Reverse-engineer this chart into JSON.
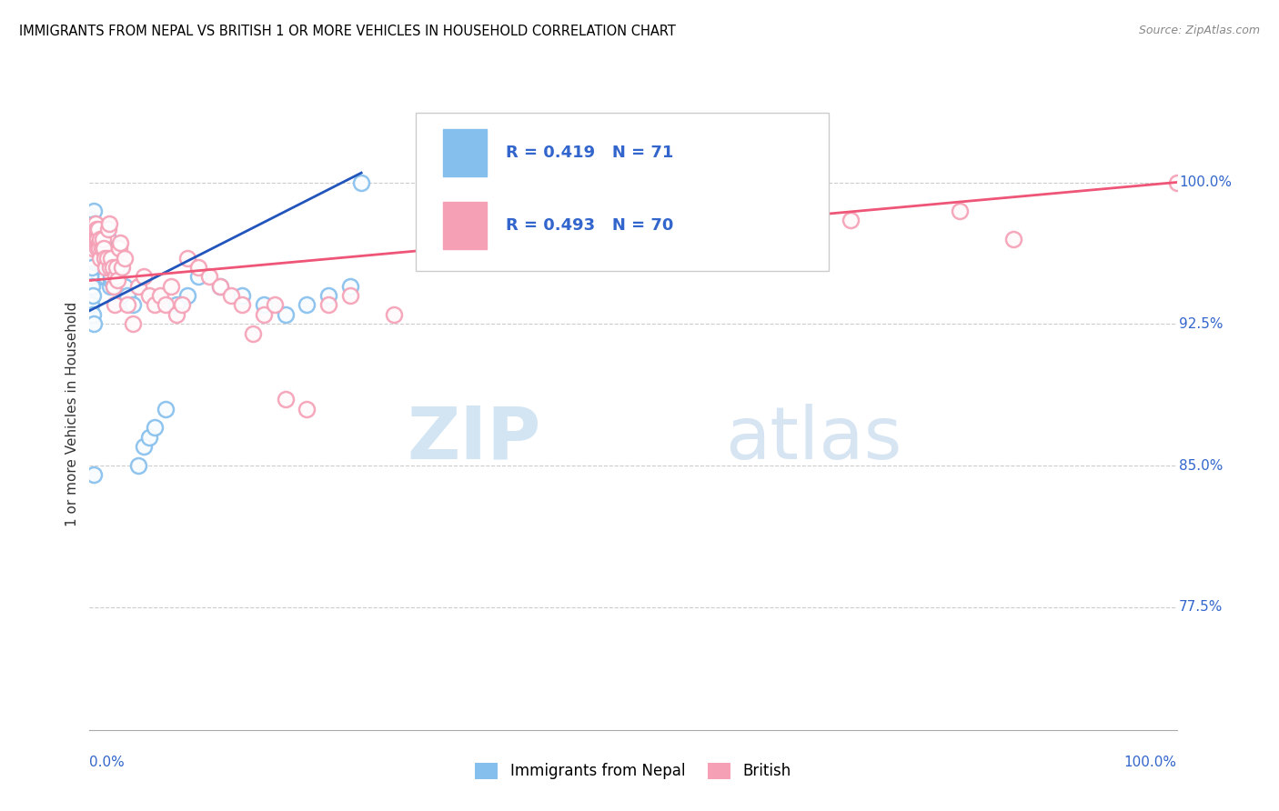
{
  "title": "IMMIGRANTS FROM NEPAL VS BRITISH 1 OR MORE VEHICLES IN HOUSEHOLD CORRELATION CHART",
  "source": "Source: ZipAtlas.com",
  "ylabel": "1 or more Vehicles in Household",
  "yticks": [
    77.5,
    85.0,
    92.5,
    100.0
  ],
  "ytick_labels": [
    "77.5%",
    "85.0%",
    "92.5%",
    "100.0%"
  ],
  "xmin": 0.0,
  "xmax": 100.0,
  "ymin": 71.0,
  "ymax": 104.5,
  "nepal_R": 0.419,
  "nepal_N": 71,
  "british_R": 0.493,
  "british_N": 70,
  "nepal_color": "#85BFED",
  "british_color": "#F5A0B5",
  "nepal_line_color": "#2255BB",
  "british_line_color": "#EE5577",
  "nepal_scatter_x": [
    0.1,
    0.15,
    0.2,
    0.25,
    0.3,
    0.35,
    0.4,
    0.45,
    0.5,
    0.55,
    0.6,
    0.65,
    0.7,
    0.75,
    0.8,
    0.85,
    0.9,
    0.95,
    1.0,
    1.05,
    1.1,
    1.15,
    1.2,
    1.25,
    1.3,
    1.35,
    1.4,
    1.45,
    1.5,
    1.55,
    1.6,
    1.65,
    1.7,
    1.75,
    1.8,
    1.85,
    1.9,
    1.95,
    2.0,
    2.1,
    2.2,
    2.5,
    2.8,
    3.2,
    3.5,
    4.0,
    4.5,
    5.0,
    5.5,
    6.0,
    7.0,
    8.0,
    9.0,
    10.0,
    12.0,
    14.0,
    16.0,
    18.0,
    20.0,
    22.0,
    24.0,
    25.0,
    0.05,
    0.08,
    0.12,
    0.18,
    0.22,
    0.28,
    0.32,
    0.38,
    0.42
  ],
  "nepal_scatter_y": [
    97.5,
    98.0,
    97.0,
    96.5,
    97.2,
    96.8,
    98.5,
    97.8,
    97.0,
    96.5,
    96.2,
    97.5,
    96.0,
    95.8,
    95.5,
    96.5,
    95.0,
    96.0,
    96.5,
    97.0,
    95.5,
    96.8,
    97.2,
    96.0,
    95.8,
    96.5,
    95.5,
    96.2,
    95.0,
    96.0,
    96.5,
    95.8,
    96.0,
    97.0,
    95.5,
    94.5,
    95.5,
    94.8,
    95.0,
    95.5,
    94.5,
    96.5,
    95.5,
    94.5,
    94.0,
    93.5,
    85.0,
    86.0,
    86.5,
    87.0,
    88.0,
    93.5,
    94.0,
    95.0,
    94.5,
    94.0,
    93.5,
    93.0,
    93.5,
    94.0,
    94.5,
    100.0,
    96.0,
    95.0,
    93.5,
    94.5,
    95.5,
    94.0,
    93.0,
    92.5,
    84.5
  ],
  "british_scatter_x": [
    0.3,
    0.4,
    0.5,
    0.55,
    0.6,
    0.65,
    0.7,
    0.75,
    0.8,
    0.85,
    0.9,
    0.95,
    1.0,
    1.1,
    1.2,
    1.3,
    1.4,
    1.5,
    1.6,
    1.7,
    1.8,
    1.9,
    2.0,
    2.1,
    2.2,
    2.3,
    2.4,
    2.5,
    2.6,
    2.7,
    2.8,
    3.0,
    3.2,
    3.5,
    4.0,
    4.5,
    5.0,
    5.5,
    6.0,
    6.5,
    7.0,
    7.5,
    8.0,
    8.5,
    9.0,
    10.0,
    11.0,
    12.0,
    13.0,
    14.0,
    15.0,
    16.0,
    17.0,
    18.0,
    20.0,
    22.0,
    24.0,
    28.0,
    31.0,
    35.0,
    38.0,
    42.0,
    48.0,
    52.0,
    60.0,
    65.0,
    70.0,
    80.0,
    100.0,
    85.0
  ],
  "british_scatter_y": [
    96.5,
    97.0,
    97.5,
    97.8,
    97.5,
    97.0,
    96.5,
    97.0,
    97.5,
    96.8,
    96.5,
    96.0,
    97.0,
    96.5,
    97.0,
    96.5,
    96.0,
    95.5,
    96.0,
    97.5,
    97.8,
    95.5,
    96.0,
    95.5,
    94.5,
    93.5,
    95.0,
    95.5,
    94.8,
    96.5,
    96.8,
    95.5,
    96.0,
    93.5,
    92.5,
    94.5,
    95.0,
    94.0,
    93.5,
    94.0,
    93.5,
    94.5,
    93.0,
    93.5,
    96.0,
    95.5,
    95.0,
    94.5,
    94.0,
    93.5,
    92.0,
    93.0,
    93.5,
    88.5,
    88.0,
    93.5,
    94.0,
    93.0,
    97.5,
    98.0,
    97.0,
    98.5,
    99.0,
    97.5,
    97.0,
    97.5,
    98.0,
    98.5,
    100.0,
    97.0
  ],
  "legend_nepal_label": "Immigrants from Nepal",
  "legend_british_label": "British",
  "nepal_reg_x0": 0.0,
  "nepal_reg_y0": 93.2,
  "nepal_reg_x1": 25.0,
  "nepal_reg_y1": 100.5,
  "british_reg_x0": 0.0,
  "british_reg_y0": 94.8,
  "british_reg_x1": 100.0,
  "british_reg_y1": 100.0
}
